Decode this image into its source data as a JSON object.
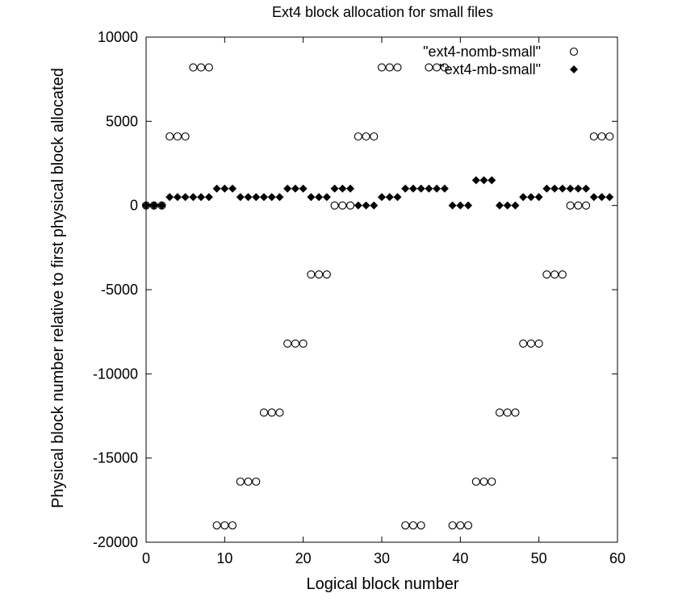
{
  "chart_data": {
    "type": "scatter",
    "title": "Ext4 block allocation for small files",
    "xlabel": "Logical block number",
    "ylabel": "Physical block number relative to first physical block allocated",
    "xlim": [
      0,
      60
    ],
    "ylim": [
      -20000,
      10000
    ],
    "x_ticks": [
      "0",
      "10",
      "20",
      "30",
      "40",
      "50",
      "60"
    ],
    "y_ticks": [
      "10000",
      "5000",
      "0",
      "-5000",
      "-10000",
      "-15000",
      "-20000"
    ],
    "legend_position": "top-right",
    "grid": false,
    "series": [
      {
        "name": "\"ext4-nomb-small\"",
        "marker": "open-circle",
        "color": "#000000",
        "points": [
          [
            0,
            0
          ],
          [
            1,
            0
          ],
          [
            2,
            0
          ],
          [
            3,
            4100
          ],
          [
            4,
            4100
          ],
          [
            5,
            4100
          ],
          [
            6,
            8200
          ],
          [
            7,
            8200
          ],
          [
            8,
            8200
          ],
          [
            9,
            -19000
          ],
          [
            10,
            -19000
          ],
          [
            11,
            -19000
          ],
          [
            12,
            -16400
          ],
          [
            13,
            -16400
          ],
          [
            14,
            -16400
          ],
          [
            15,
            -12300
          ],
          [
            16,
            -12300
          ],
          [
            17,
            -12300
          ],
          [
            18,
            -8200
          ],
          [
            19,
            -8200
          ],
          [
            20,
            -8200
          ],
          [
            21,
            -4100
          ],
          [
            22,
            -4100
          ],
          [
            23,
            -4100
          ],
          [
            24,
            0
          ],
          [
            25,
            0
          ],
          [
            26,
            0
          ],
          [
            27,
            4100
          ],
          [
            28,
            4100
          ],
          [
            29,
            4100
          ],
          [
            30,
            8200
          ],
          [
            31,
            8200
          ],
          [
            32,
            8200
          ],
          [
            33,
            -19000
          ],
          [
            34,
            -19000
          ],
          [
            35,
            -19000
          ],
          [
            36,
            8200
          ],
          [
            37,
            8200
          ],
          [
            38,
            8200
          ],
          [
            39,
            -19000
          ],
          [
            40,
            -19000
          ],
          [
            41,
            -19000
          ],
          [
            42,
            -16400
          ],
          [
            43,
            -16400
          ],
          [
            44,
            -16400
          ],
          [
            45,
            -12300
          ],
          [
            46,
            -12300
          ],
          [
            47,
            -12300
          ],
          [
            48,
            -8200
          ],
          [
            49,
            -8200
          ],
          [
            50,
            -8200
          ],
          [
            51,
            -4100
          ],
          [
            52,
            -4100
          ],
          [
            53,
            -4100
          ],
          [
            54,
            0
          ],
          [
            55,
            0
          ],
          [
            56,
            0
          ],
          [
            57,
            4100
          ],
          [
            58,
            4100
          ],
          [
            59,
            4100
          ]
        ]
      },
      {
        "name": "\"ext4-mb-small\"",
        "marker": "filled-diamond",
        "color": "#000000",
        "points": [
          [
            0,
            0
          ],
          [
            1,
            0
          ],
          [
            2,
            0
          ],
          [
            3,
            500
          ],
          [
            4,
            500
          ],
          [
            5,
            500
          ],
          [
            6,
            500
          ],
          [
            7,
            500
          ],
          [
            8,
            500
          ],
          [
            9,
            1000
          ],
          [
            10,
            1000
          ],
          [
            11,
            1000
          ],
          [
            12,
            500
          ],
          [
            13,
            500
          ],
          [
            14,
            500
          ],
          [
            15,
            500
          ],
          [
            16,
            500
          ],
          [
            17,
            500
          ],
          [
            18,
            1000
          ],
          [
            19,
            1000
          ],
          [
            20,
            1000
          ],
          [
            21,
            500
          ],
          [
            22,
            500
          ],
          [
            23,
            500
          ],
          [
            24,
            1000
          ],
          [
            25,
            1000
          ],
          [
            26,
            1000
          ],
          [
            27,
            0
          ],
          [
            28,
            0
          ],
          [
            29,
            0
          ],
          [
            30,
            500
          ],
          [
            31,
            500
          ],
          [
            32,
            500
          ],
          [
            33,
            1000
          ],
          [
            34,
            1000
          ],
          [
            35,
            1000
          ],
          [
            36,
            1000
          ],
          [
            37,
            1000
          ],
          [
            38,
            1000
          ],
          [
            39,
            0
          ],
          [
            40,
            0
          ],
          [
            41,
            0
          ],
          [
            42,
            1500
          ],
          [
            43,
            1500
          ],
          [
            44,
            1500
          ],
          [
            45,
            0
          ],
          [
            46,
            0
          ],
          [
            47,
            0
          ],
          [
            48,
            500
          ],
          [
            49,
            500
          ],
          [
            50,
            500
          ],
          [
            51,
            1000
          ],
          [
            52,
            1000
          ],
          [
            53,
            1000
          ],
          [
            54,
            1000
          ],
          [
            55,
            1000
          ],
          [
            56,
            1000
          ],
          [
            57,
            500
          ],
          [
            58,
            500
          ],
          [
            59,
            500
          ]
        ]
      }
    ]
  }
}
